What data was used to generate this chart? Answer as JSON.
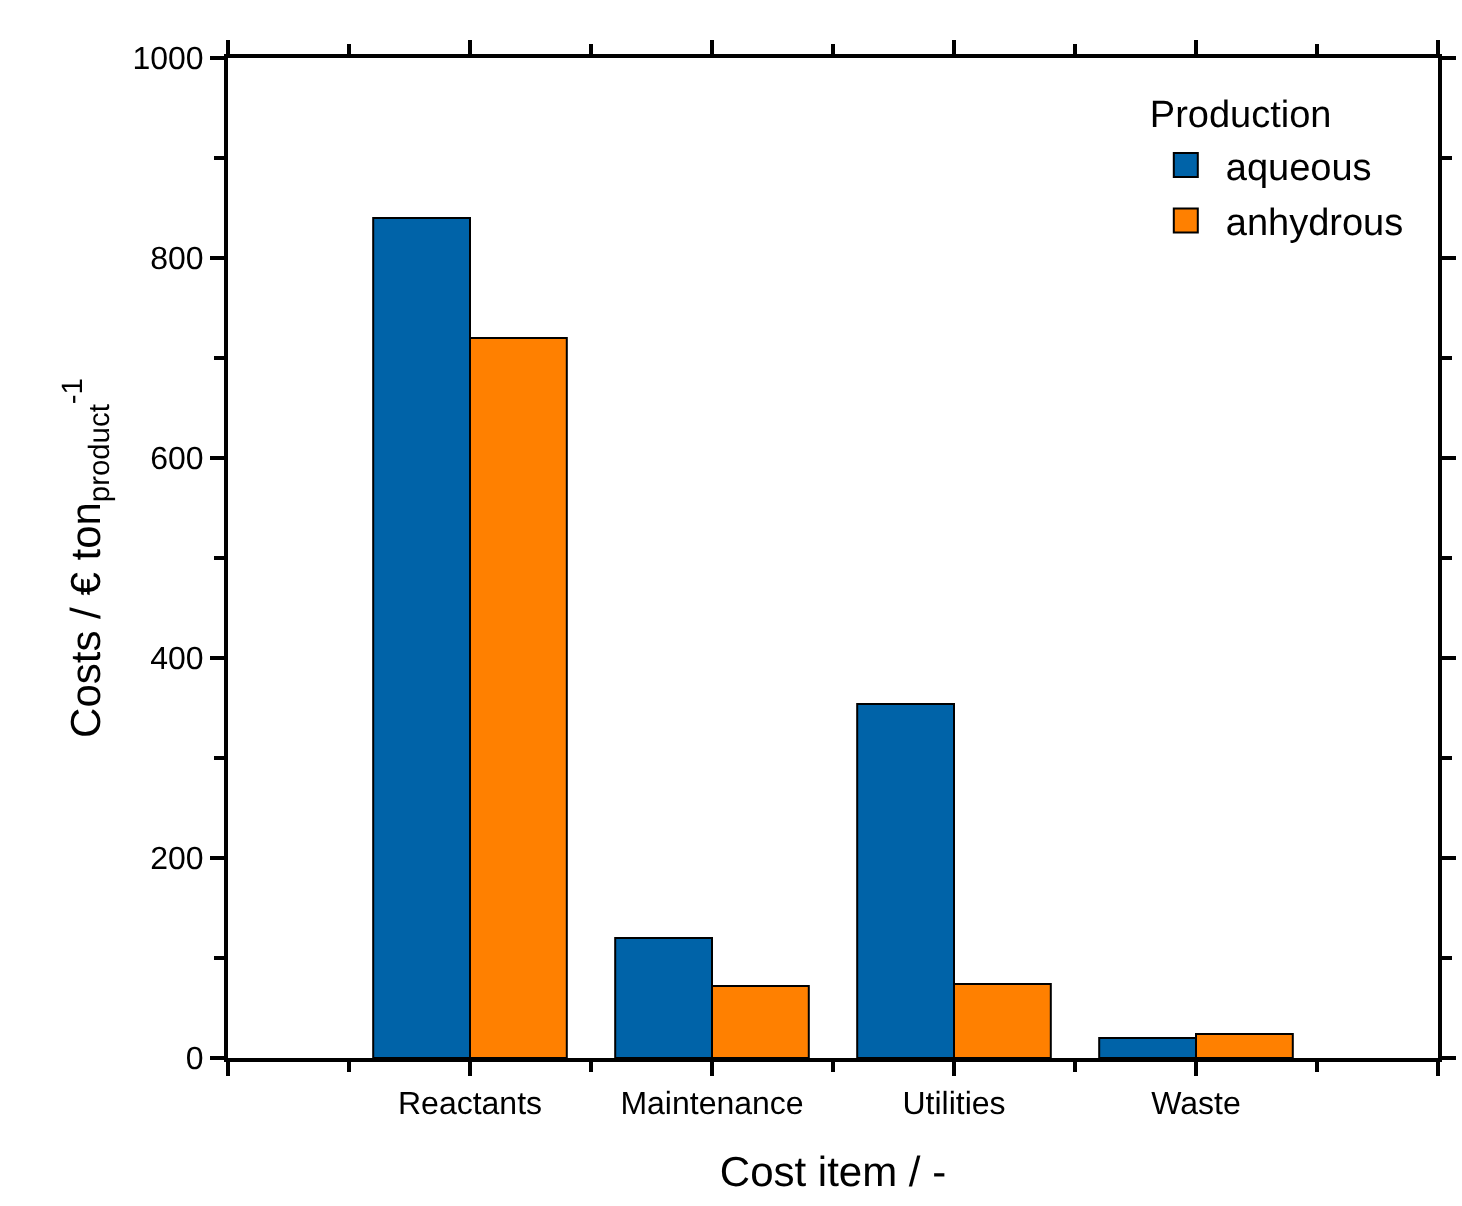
{
  "chart_data": {
    "type": "bar",
    "xlabel": "Cost item / -",
    "ylabel": "Costs / € ton$_{product}$$^{-1}$",
    "legend_title": "Production",
    "categories": [
      "Reactants",
      "Maintenance",
      "Utilities",
      "Waste"
    ],
    "series": [
      {
        "name": "aqueous",
        "color": "#0063a8",
        "values": [
          840,
          120,
          354,
          20
        ]
      },
      {
        "name": "anhydrous",
        "color": "#ff8000",
        "values": [
          720,
          72,
          74,
          24
        ]
      }
    ],
    "ylim": [
      0,
      1000
    ],
    "yticks": [
      0,
      200,
      400,
      600,
      800,
      1000
    ],
    "legend": "top right"
  }
}
